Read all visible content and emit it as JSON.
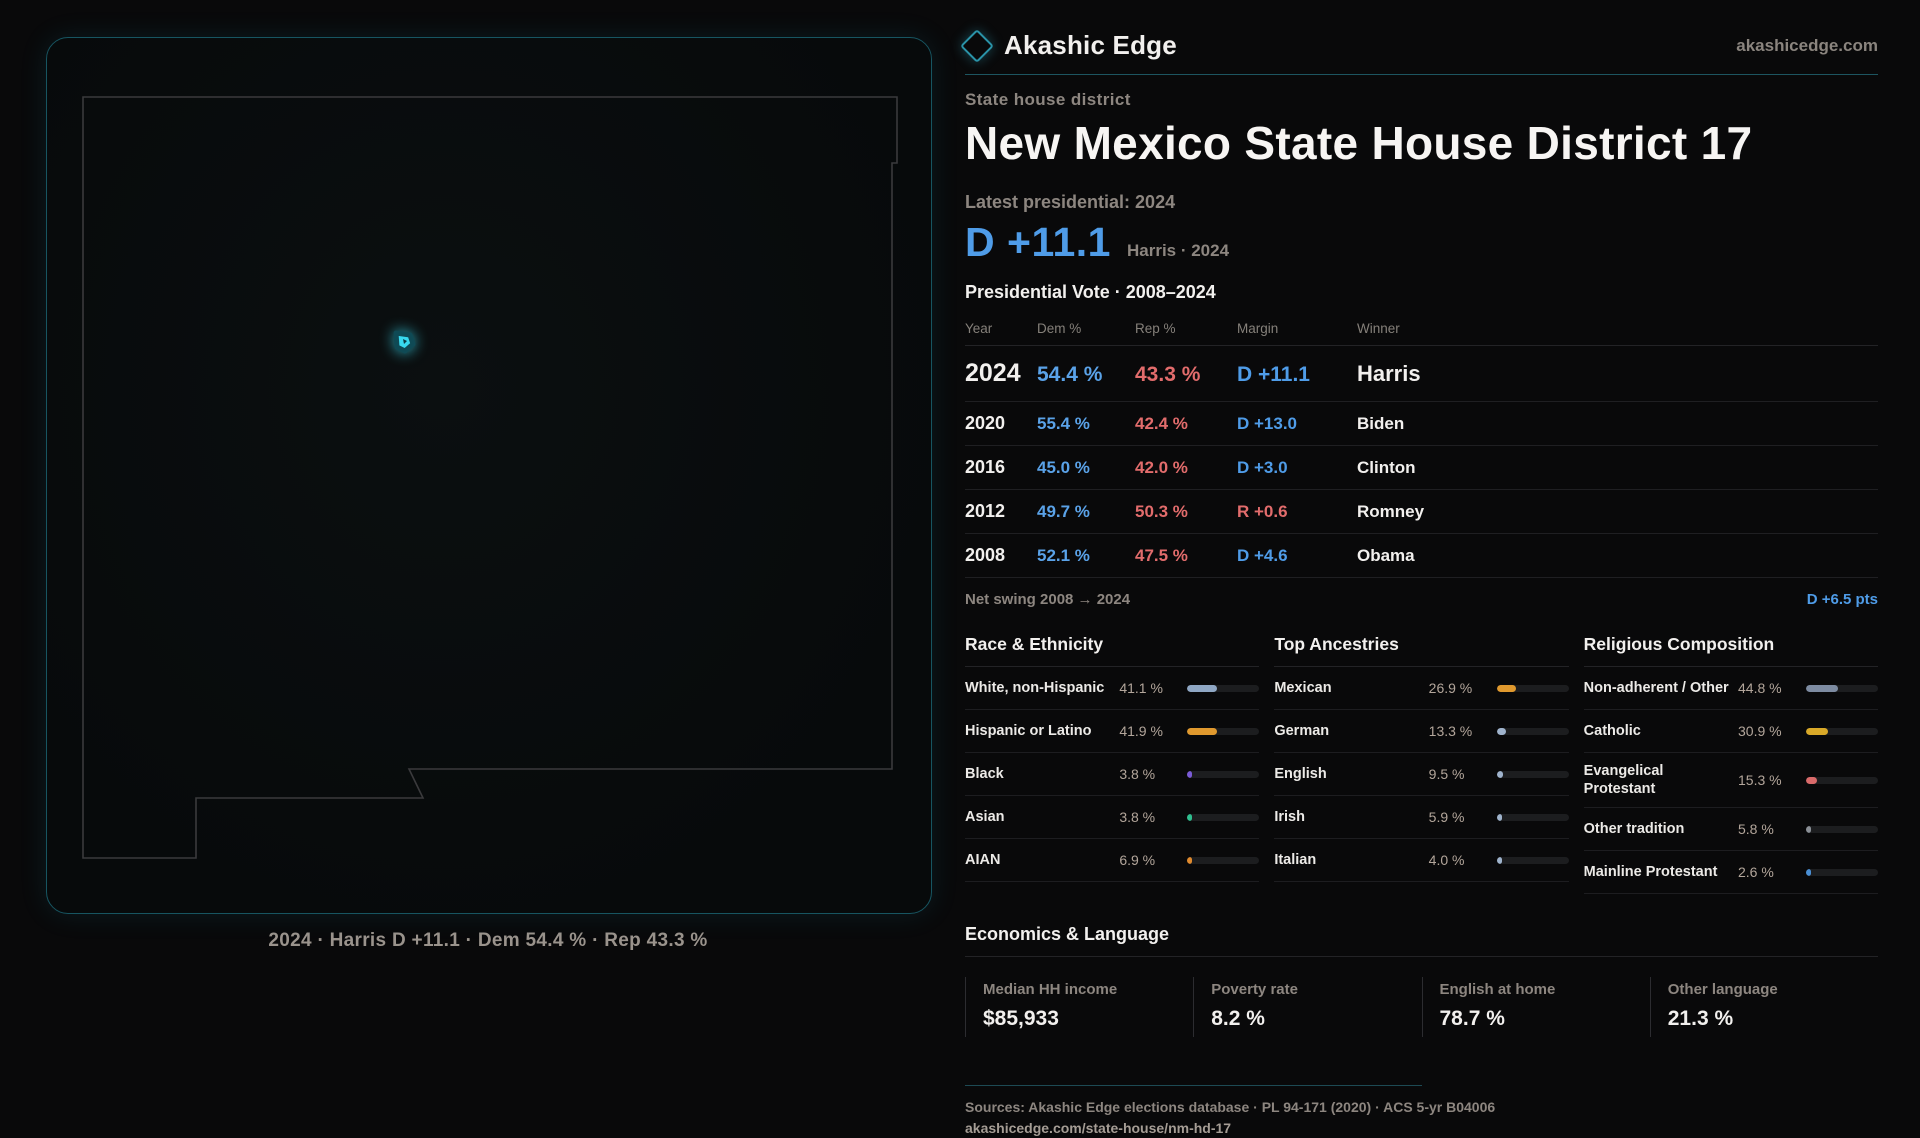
{
  "brand": {
    "name": "Akashic Edge",
    "site": "akashicedge.com"
  },
  "page": {
    "kicker": "State house district",
    "title": "New Mexico State House District 17",
    "latest_label": "Latest presidential: 2024",
    "headline_margin": "D +11.1",
    "headline_sub": "Harris · 2024",
    "table_title": "Presidential Vote · 2008–2024"
  },
  "map": {
    "caption": "2024 · Harris D +11.1 · Dem 54.4 % · Rep 43.3 %",
    "marker_color": "#38d8ee",
    "outline_color": "#3a3a3c"
  },
  "vote_table": {
    "headers": [
      "Year",
      "Dem %",
      "Rep %",
      "Margin",
      "Winner"
    ],
    "rows": [
      {
        "year": "2024",
        "dem": "54.4 %",
        "rep": "43.3 %",
        "margin": "D +11.1",
        "margin_party": "D",
        "winner": "Harris",
        "emphasis": true
      },
      {
        "year": "2020",
        "dem": "55.4 %",
        "rep": "42.4 %",
        "margin": "D +13.0",
        "margin_party": "D",
        "winner": "Biden",
        "emphasis": false
      },
      {
        "year": "2016",
        "dem": "45.0 %",
        "rep": "42.0 %",
        "margin": "D +3.0",
        "margin_party": "D",
        "winner": "Clinton",
        "emphasis": false
      },
      {
        "year": "2012",
        "dem": "49.7 %",
        "rep": "50.3 %",
        "margin": "R +0.6",
        "margin_party": "R",
        "winner": "Romney",
        "emphasis": false
      },
      {
        "year": "2008",
        "dem": "52.1 %",
        "rep": "47.5 %",
        "margin": "D +4.6",
        "margin_party": "D",
        "winner": "Obama",
        "emphasis": false
      }
    ],
    "net_swing_label": "Net swing 2008 → 2024",
    "net_swing_value": "D +6.5 pts"
  },
  "demographics": [
    {
      "title": "Race & Ethnicity",
      "rows": [
        {
          "label": "White, non-Hispanic",
          "value": "41.1 %",
          "pct": 41.1,
          "color": "#8fa7c4"
        },
        {
          "label": "Hispanic or Latino",
          "value": "41.9 %",
          "pct": 41.9,
          "color": "#e0992e"
        },
        {
          "label": "Black",
          "value": "3.8 %",
          "pct": 3.8,
          "color": "#7a5bd6"
        },
        {
          "label": "Asian",
          "value": "3.8 %",
          "pct": 3.8,
          "color": "#2fbf8f"
        },
        {
          "label": "AIAN",
          "value": "6.9 %",
          "pct": 6.9,
          "color": "#e08a2e"
        }
      ]
    },
    {
      "title": "Top Ancestries",
      "rows": [
        {
          "label": "Mexican",
          "value": "26.9 %",
          "pct": 26.9,
          "color": "#e0992e"
        },
        {
          "label": "German",
          "value": "13.3 %",
          "pct": 13.3,
          "color": "#9fb3cc"
        },
        {
          "label": "English",
          "value": "9.5 %",
          "pct": 9.5,
          "color": "#9fb3cc"
        },
        {
          "label": "Irish",
          "value": "5.9 %",
          "pct": 5.9,
          "color": "#9fb3cc"
        },
        {
          "label": "Italian",
          "value": "4.0 %",
          "pct": 4.0,
          "color": "#9fb3cc"
        }
      ]
    },
    {
      "title": "Religious Composition",
      "rows": [
        {
          "label": "Non-adherent / Other",
          "value": "44.8 %",
          "pct": 44.8,
          "color": "#7d8ba1"
        },
        {
          "label": "Catholic",
          "value": "30.9 %",
          "pct": 30.9,
          "color": "#d9a928"
        },
        {
          "label": "Evangelical Protestant",
          "value": "15.3 %",
          "pct": 15.3,
          "color": "#d96a6a"
        },
        {
          "label": "Other tradition",
          "value": "5.8 %",
          "pct": 5.8,
          "color": "#8a8f96"
        },
        {
          "label": "Mainline Protestant",
          "value": "2.6 %",
          "pct": 2.6,
          "color": "#4a8fd4"
        }
      ]
    }
  ],
  "economics": {
    "title": "Economics & Language",
    "stats": [
      {
        "label": "Median HH income",
        "value": "$85,933"
      },
      {
        "label": "Poverty rate",
        "value": "8.2 %"
      },
      {
        "label": "English at home",
        "value": "78.7 %"
      },
      {
        "label": "Other language",
        "value": "21.3 %"
      }
    ]
  },
  "footer": {
    "sources": "Sources: Akashic Edge elections database · PL 94-171 (2020) · ACS 5-yr B04006",
    "permalink": "akashicedge.com/state-house/nm-hd-17"
  }
}
